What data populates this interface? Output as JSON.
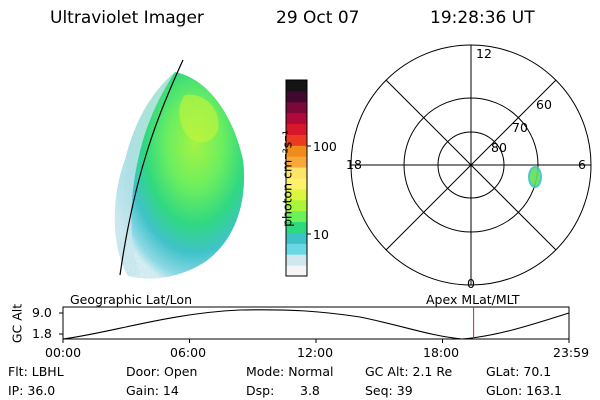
{
  "header": {
    "instrument": "Ultraviolet Imager",
    "date": "29 Oct 07",
    "time": "19:28:36 UT"
  },
  "colorbar": {
    "label": "photon cm⁻²s⁻¹",
    "ticks": [
      "100",
      "10"
    ],
    "colors": [
      "#f5f5f5",
      "#cfe7ef",
      "#6ad8e4",
      "#3ec2c8",
      "#2fd97e",
      "#6ef05a",
      "#a8f53c",
      "#dcf540",
      "#fff26a",
      "#fde36a",
      "#f6a93a",
      "#f08c1c",
      "#ea3a20",
      "#d8182a",
      "#b00a3a",
      "#7a0838",
      "#400a30",
      "#141414"
    ]
  },
  "polar_plot": {
    "mlt_labels": {
      "top": "12",
      "left": "18",
      "right": "6",
      "bottom": "0"
    },
    "lat_labels": [
      "60",
      "70",
      "80"
    ]
  },
  "timeline": {
    "left_title": "Geographic Lat/Lon",
    "right_title": "Apex MLat/MLT",
    "y_axis_label": "GC Alt",
    "y_ticks": [
      "9.0",
      "1.8"
    ],
    "x_ticks": [
      "00:00",
      "06:00",
      "12:00",
      "18:00",
      "23:59"
    ],
    "current_time_fraction": 0.8115,
    "marker_color": "#cc2222"
  },
  "info": {
    "flt": "Flt: LBHL",
    "ip": "IP: 36.0",
    "door": "Door: Open",
    "gain": "Gain: 14",
    "mode": "Mode:  Normal",
    "dsp_label": "Dsp:",
    "dsp_value": "3.8",
    "gc_alt": "GC Alt: 2.1 Re",
    "seq": "Seq: 39",
    "glat": "GLat:  70.1",
    "glon": "GLon: 163.1"
  }
}
